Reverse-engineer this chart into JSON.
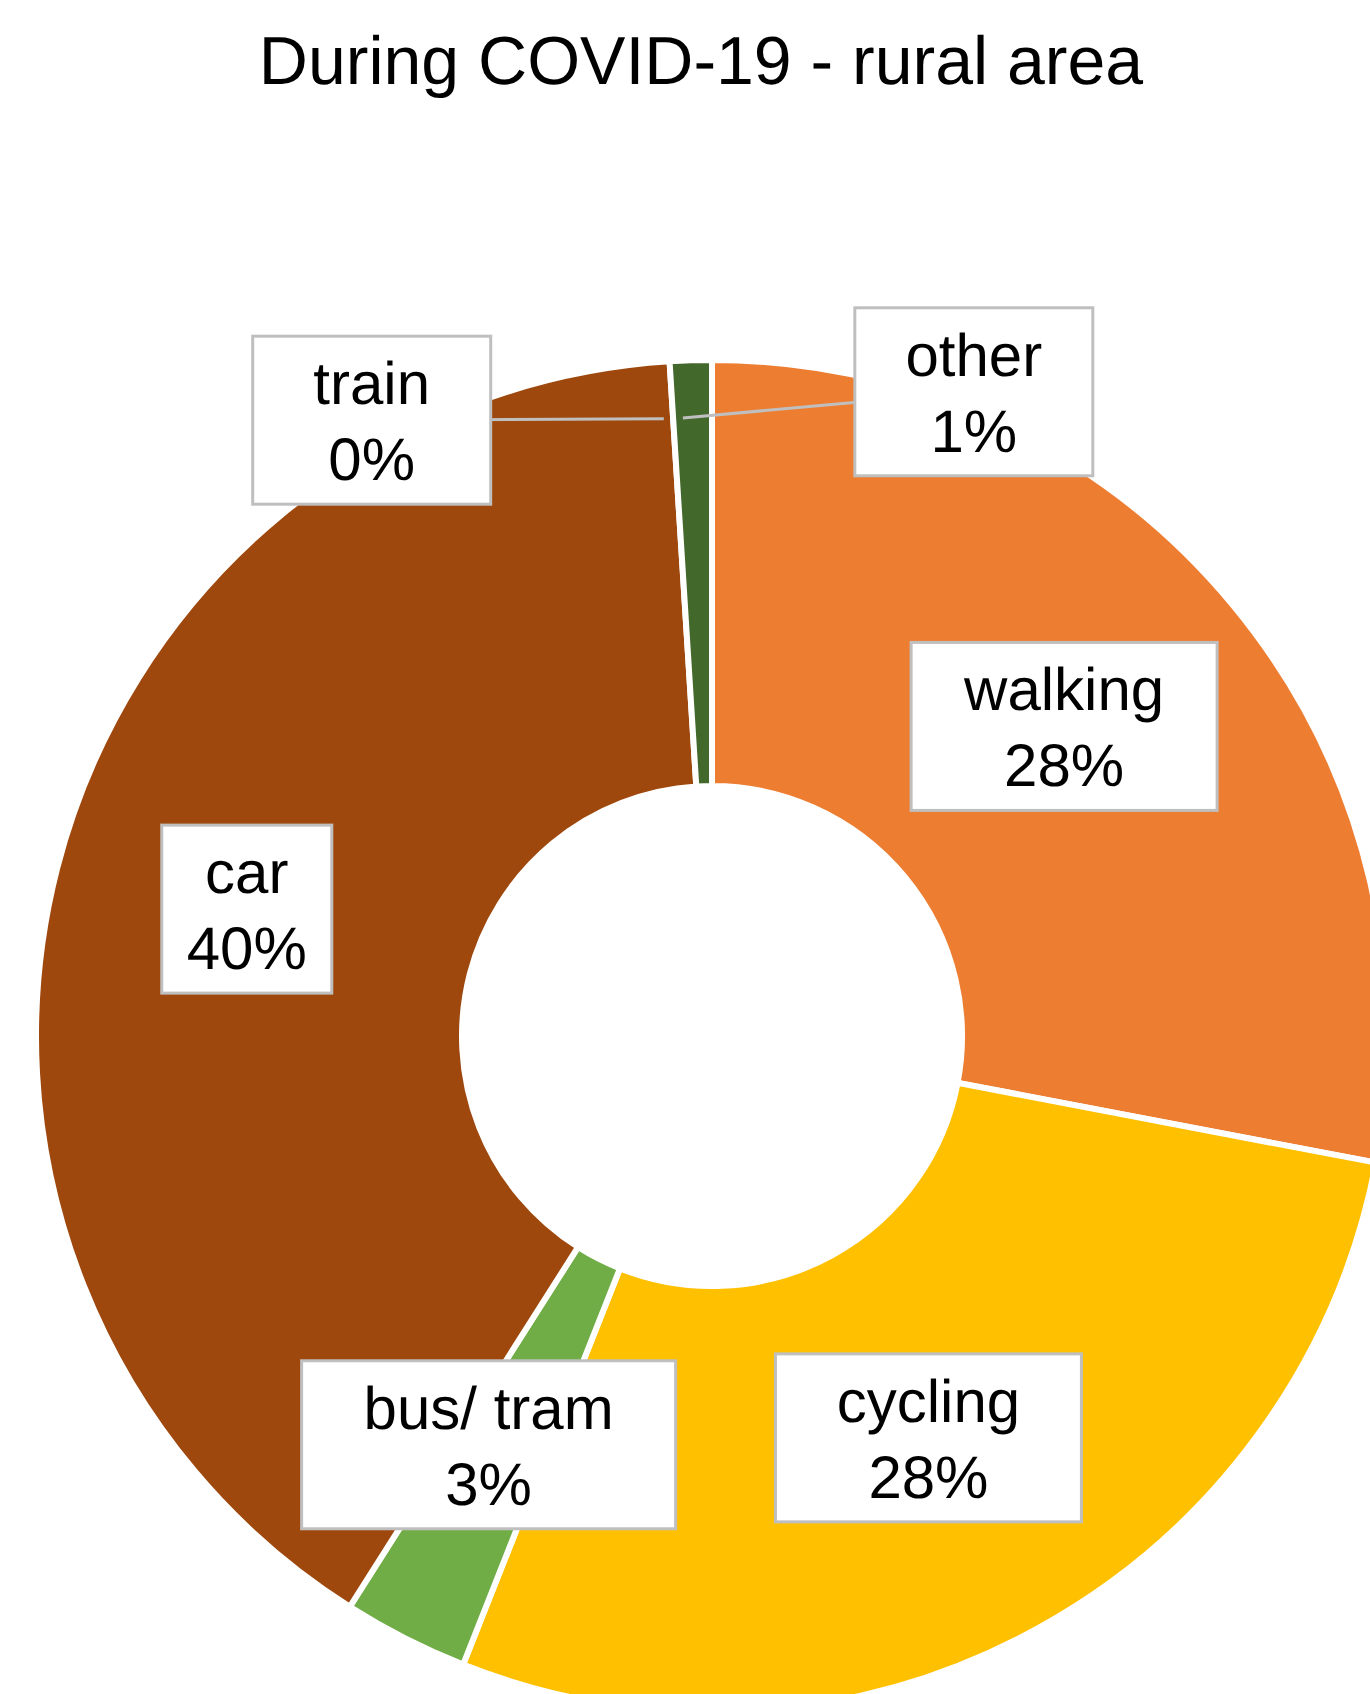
{
  "chart_data": {
    "type": "donut",
    "title": "During COVID-19 - rural area",
    "categories": [
      "walking",
      "cycling",
      "bus/ tram",
      "car",
      "train",
      "other"
    ],
    "values": [
      28,
      28,
      3,
      40,
      0,
      1
    ],
    "colors": [
      "#ed7d31",
      "#ffc000",
      "#70ad47",
      "#9e480e",
      "#997300",
      "#43682b"
    ],
    "value_labels": [
      "28%",
      "28%",
      "3%",
      "40%",
      "0%",
      "1%"
    ],
    "legend": false
  }
}
